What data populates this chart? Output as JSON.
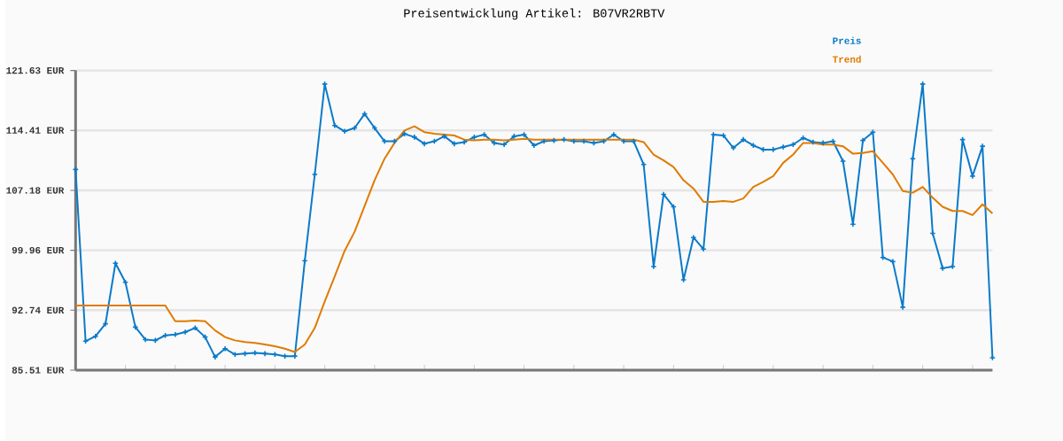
{
  "chart_data": {
    "type": "line",
    "title": "Preisentwicklung Artikel: B07VR2RBTV",
    "categories": [
      null,
      null,
      null,
      null,
      null,
      null,
      null,
      null,
      null,
      null,
      null,
      null,
      null,
      null,
      null,
      null,
      null,
      null,
      null,
      null,
      null,
      null,
      null,
      null,
      null,
      null,
      null,
      null,
      null,
      null,
      null,
      null,
      null,
      null,
      null,
      null,
      null,
      null,
      null,
      null,
      null,
      null,
      null,
      null,
      null,
      null,
      null,
      null,
      null,
      null,
      null,
      null,
      null,
      null,
      null,
      null,
      null,
      null,
      null,
      null,
      null,
      null,
      null,
      null,
      null,
      null,
      null,
      null,
      null,
      null,
      null,
      null,
      null,
      null,
      null,
      null,
      null,
      null,
      null,
      null,
      null,
      null,
      null,
      null,
      null,
      null,
      null,
      null,
      null,
      null,
      null,
      null,
      null
    ],
    "series": [
      {
        "name": "Preis",
        "color": "#0a7ac9",
        "marker": "cross",
        "values": [
          109.7,
          89.0,
          89.6,
          91.1,
          98.4,
          96.1,
          90.7,
          89.2,
          89.1,
          89.7,
          89.8,
          90.1,
          90.6,
          89.5,
          87.1,
          88.1,
          87.4,
          87.5,
          87.6,
          87.5,
          87.4,
          87.2,
          87.2,
          98.7,
          109.1,
          120.0,
          115.0,
          114.3,
          114.7,
          116.4,
          114.7,
          113.1,
          113.1,
          114.0,
          113.6,
          112.8,
          113.1,
          113.7,
          112.8,
          113.0,
          113.6,
          113.9,
          112.9,
          112.7,
          113.7,
          113.9,
          112.6,
          113.1,
          113.2,
          113.3,
          113.1,
          113.1,
          112.9,
          113.1,
          113.9,
          113.1,
          113.1,
          110.3,
          98.0,
          106.7,
          105.2,
          96.4,
          101.5,
          100.1,
          113.9,
          113.8,
          112.3,
          113.3,
          112.6,
          112.1,
          112.1,
          112.4,
          112.7,
          113.5,
          113.0,
          112.9,
          113.1,
          110.7,
          103.1,
          113.2,
          114.2,
          99.1,
          98.6,
          93.1,
          111.0,
          120.0,
          102.0,
          97.8,
          98.0,
          113.3,
          108.9,
          112.5,
          87.0
        ]
      },
      {
        "name": "Trend",
        "color": "#e07b00",
        "values": [
          93.3,
          93.3,
          93.3,
          93.3,
          93.3,
          93.3,
          93.3,
          93.3,
          93.3,
          93.3,
          91.4,
          91.4,
          91.5,
          91.4,
          90.3,
          89.5,
          89.1,
          88.9,
          88.8,
          88.6,
          88.4,
          88.1,
          87.7,
          88.6,
          90.6,
          93.8,
          96.8,
          99.9,
          102.2,
          105.3,
          108.4,
          111.0,
          112.9,
          114.4,
          114.9,
          114.2,
          114.0,
          113.9,
          113.8,
          113.3,
          113.2,
          113.3,
          113.3,
          113.2,
          113.3,
          113.4,
          113.3,
          113.3,
          113.3,
          113.3,
          113.3,
          113.3,
          113.3,
          113.3,
          113.3,
          113.3,
          113.3,
          113.0,
          111.5,
          110.8,
          110.0,
          108.4,
          107.4,
          105.8,
          105.8,
          105.9,
          105.8,
          106.2,
          107.6,
          108.2,
          108.9,
          110.5,
          111.5,
          112.9,
          112.9,
          112.7,
          112.7,
          112.5,
          111.6,
          111.7,
          111.9,
          110.5,
          109.1,
          107.1,
          106.9,
          107.6,
          106.3,
          105.2,
          104.7,
          104.7,
          104.2,
          105.5,
          104.4
        ]
      }
    ],
    "ylim": [
      85.51,
      121.63
    ],
    "yticks": [
      {
        "value": 85.51,
        "label": "85.51 EUR"
      },
      {
        "value": 92.74,
        "label": "92.74 EUR"
      },
      {
        "value": 99.96,
        "label": "99.96 EUR"
      },
      {
        "value": 107.18,
        "label": "107.18 EUR"
      },
      {
        "value": 114.41,
        "label": "114.41 EUR"
      },
      {
        "value": 121.63,
        "label": "121.63 EUR"
      }
    ],
    "grid": "y",
    "legend": "top right"
  }
}
